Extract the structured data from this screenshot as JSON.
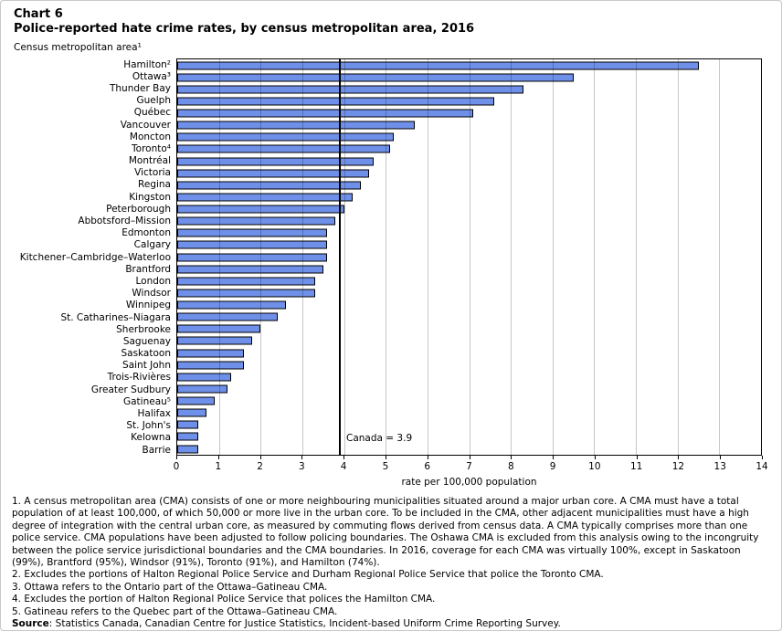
{
  "header": {
    "chart_number": "Chart 6",
    "title": "Police-reported hate crime rates, by census metropolitan area, 2016"
  },
  "chart_data": {
    "type": "bar",
    "orientation": "horizontal",
    "y_axis_title": "Census metropolitan area¹",
    "xlabel": "rate per 100,000 population",
    "xlim": [
      0,
      14
    ],
    "x_ticks": [
      0,
      1,
      2,
      3,
      4,
      5,
      6,
      7,
      8,
      9,
      10,
      11,
      12,
      13,
      14
    ],
    "grid": true,
    "reference_line": {
      "label": "Canada = 3.9",
      "value": 3.9
    },
    "categories": [
      "Hamilton²",
      "Ottawa³",
      "Thunder Bay",
      "Guelph",
      "Québec",
      "Vancouver",
      "Moncton",
      "Toronto⁴",
      "Montréal",
      "Victoria",
      "Regina",
      "Kingston",
      "Peterborough",
      "Abbotsford–Mission",
      "Edmonton",
      "Calgary",
      "Kitchener–Cambridge–Waterloo",
      "Brantford",
      "London",
      "Windsor",
      "Winnipeg",
      "St. Catharines–Niagara",
      "Sherbrooke",
      "Saguenay",
      "Saskatoon",
      "Saint John",
      "Trois-Rivières",
      "Greater Sudbury",
      "Gatineau⁵",
      "Halifax",
      "St. John's",
      "Kelowna",
      "Barrie"
    ],
    "values": [
      12.5,
      9.5,
      8.3,
      7.6,
      7.1,
      5.7,
      5.2,
      5.1,
      4.7,
      4.6,
      4.4,
      4.2,
      4.0,
      3.8,
      3.6,
      3.6,
      3.6,
      3.5,
      3.3,
      3.3,
      2.6,
      2.4,
      2.0,
      1.8,
      1.6,
      1.6,
      1.3,
      1.2,
      0.9,
      0.7,
      0.5,
      0.5,
      0.5
    ],
    "bar_color": "#6f90e8",
    "bar_border_color": "#000000",
    "gridline_color": "#c9c9c9"
  },
  "footnotes": [
    "1. A census metropolitan area (CMA) consists of one or more neighbouring municipalities situated around a major urban core. A CMA must have a total population of at least 100,000, of which 50,000 or more live in the urban core. To be included in the CMA, other adjacent municipalities must have a high degree of integration with the central urban core, as measured by commuting flows derived from census data. A CMA typically comprises more than one police service. CMA populations have been adjusted to follow policing boundaries. The Oshawa CMA is excluded from this analysis owing to the incongruity between the police service jurisdictional boundaries and the CMA boundaries. In 2016, coverage for each CMA was virtually 100%, except in Saskatoon (99%), Brantford (95%), Windsor (91%), Toronto (91%), and Hamilton (74%).",
    "2. Excludes the portions of Halton Regional Police Service and Durham Regional Police Service that police the Toronto CMA.",
    "3. Ottawa refers to the Ontario part of the Ottawa–Gatineau CMA.",
    "4. Excludes the portion of Halton Regional Police Service that polices the Hamilton CMA.",
    "5. Gatineau refers to the Quebec part of the Ottawa–Gatineau CMA."
  ],
  "source": {
    "label": "Source",
    "text": ": Statistics Canada, Canadian Centre for Justice Statistics, Incident-based Uniform Crime Reporting Survey."
  }
}
